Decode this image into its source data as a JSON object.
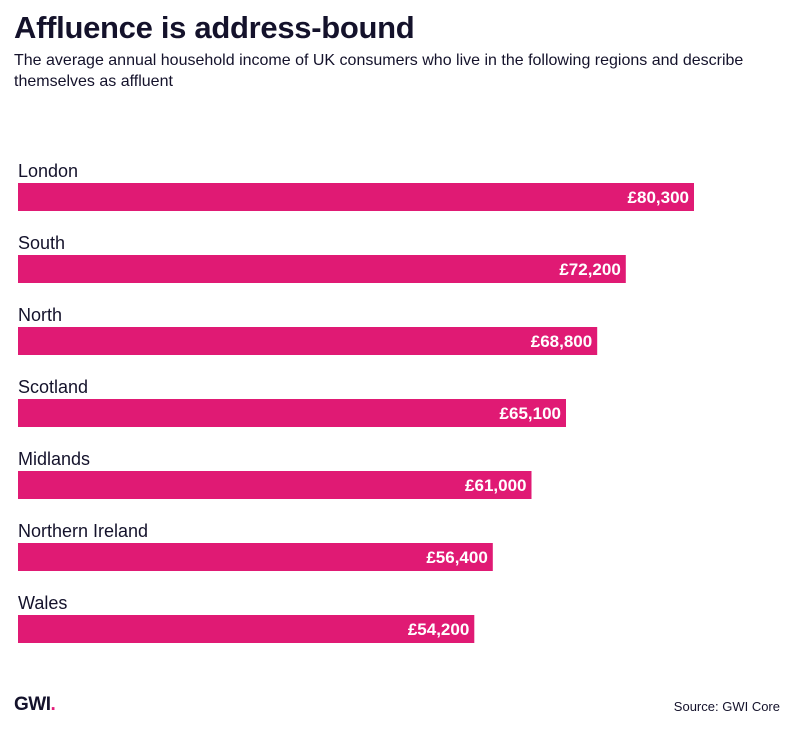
{
  "header": {
    "title": "Affluence is address-bound",
    "subtitle": "The average annual household income of UK consumers who live in the following regions and describe themselves as affluent"
  },
  "footer": {
    "logo_text": "GWI",
    "logo_dot": ".",
    "source": "Source: GWI Core"
  },
  "colors": {
    "bar": "#e01a74",
    "text": "#14122b",
    "label_on_bar": "#ffffff",
    "logo_dot": "#e31c79"
  },
  "chart_data": {
    "type": "bar",
    "orientation": "horizontal",
    "title": "Affluence is address-bound",
    "xlabel": "",
    "ylabel": "",
    "unit": "£",
    "xlim": [
      0,
      80300
    ],
    "grid": false,
    "categories": [
      "London",
      "South",
      "North",
      "Scotland",
      "Midlands",
      "Northern Ireland",
      "Wales"
    ],
    "values": [
      80300,
      72200,
      68800,
      65100,
      61000,
      56400,
      54200
    ],
    "value_labels": [
      "£80,300",
      "£72,200",
      "£68,800",
      "£65,100",
      "£61,000",
      "£56,400",
      "£54,200"
    ]
  }
}
